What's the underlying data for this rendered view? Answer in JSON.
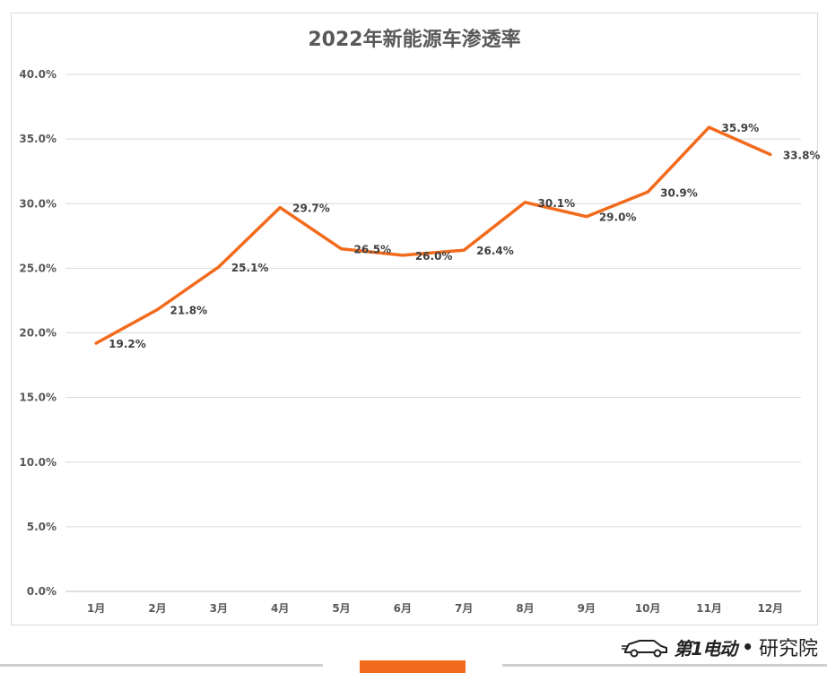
{
  "chart_data": {
    "type": "line",
    "title": "2022年新能源车渗透率",
    "xlabel": "",
    "ylabel": "",
    "categories": [
      "1月",
      "2月",
      "3月",
      "4月",
      "5月",
      "6月",
      "7月",
      "8月",
      "9月",
      "10月",
      "11月",
      "12月"
    ],
    "series": [
      {
        "values": [
          19.2,
          21.8,
          25.1,
          29.7,
          26.5,
          26.0,
          26.4,
          30.1,
          29.0,
          30.9,
          35.9,
          33.8
        ],
        "labels": [
          "19.2%",
          "21.8%",
          "25.1%",
          "29.7%",
          "26.5%",
          "26.0%",
          "26.4%",
          "30.1%",
          "29.0%",
          "30.9%",
          "35.9%",
          "33.8%"
        ],
        "color": "#f26b1d"
      }
    ],
    "ylim": [
      0,
      40
    ],
    "yticks": [
      "0.0%",
      "5.0%",
      "10.0%",
      "15.0%",
      "20.0%",
      "25.0%",
      "30.0%",
      "35.0%",
      "40.0%"
    ],
    "grid": true,
    "legend": "none"
  },
  "brand": {
    "name": "第1电动",
    "separator": "•",
    "suffix": "研究院",
    "icon": "car-icon",
    "accent_color": "#f26b1d"
  }
}
